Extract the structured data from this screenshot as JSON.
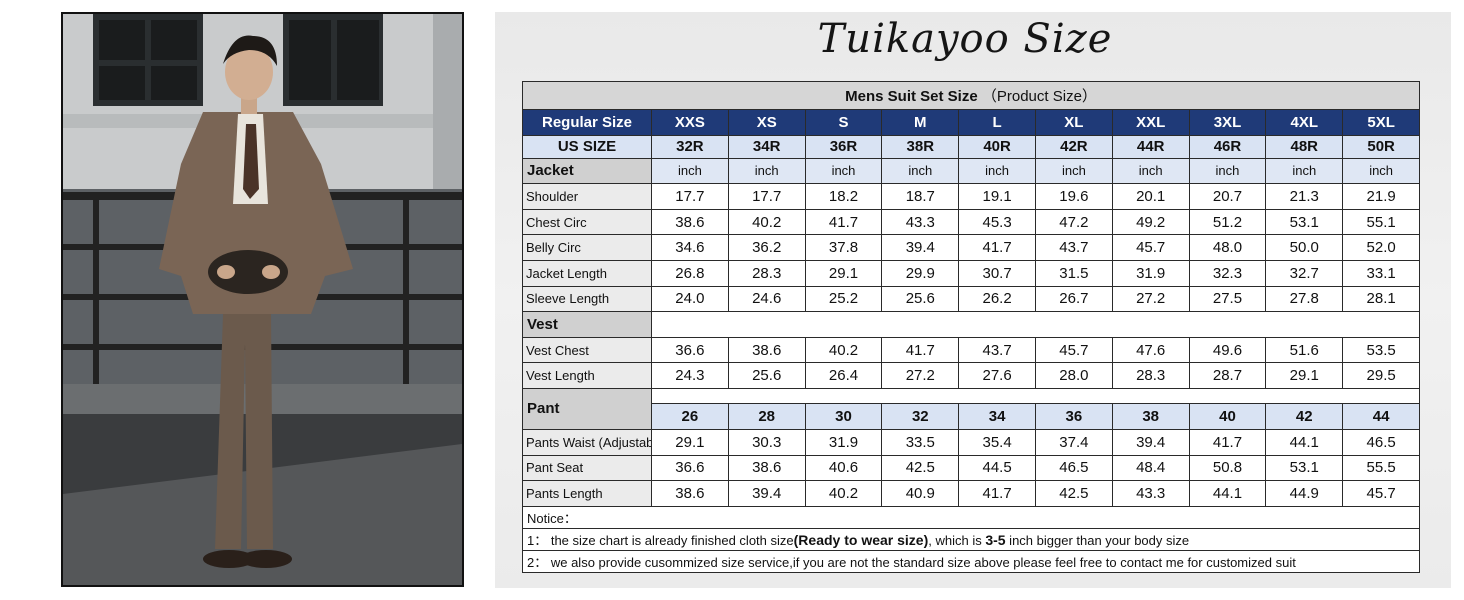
{
  "brand": "Tuikayoo Size",
  "table": {
    "title": "Mens Suit Set Size",
    "subtitle": "（Product Size）",
    "regular_label": "Regular Size",
    "sizes": [
      "XXS",
      "XS",
      "S",
      "M",
      "L",
      "XL",
      "XXL",
      "3XL",
      "4XL",
      "5XL"
    ],
    "us_label": "US SIZE",
    "us_sizes": [
      "32R",
      "34R",
      "36R",
      "38R",
      "40R",
      "42R",
      "44R",
      "46R",
      "48R",
      "50R"
    ],
    "unit": "inch",
    "jacket": {
      "label": "Jacket",
      "rows": [
        {
          "name": "Shoulder",
          "values": [
            "17.7",
            "17.7",
            "18.2",
            "18.7",
            "19.1",
            "19.6",
            "20.1",
            "20.7",
            "21.3",
            "21.9"
          ]
        },
        {
          "name": "Chest Circ",
          "values": [
            "38.6",
            "40.2",
            "41.7",
            "43.3",
            "45.3",
            "47.2",
            "49.2",
            "51.2",
            "53.1",
            "55.1"
          ]
        },
        {
          "name": "Belly Circ",
          "values": [
            "34.6",
            "36.2",
            "37.8",
            "39.4",
            "41.7",
            "43.7",
            "45.7",
            "48.0",
            "50.0",
            "52.0"
          ]
        },
        {
          "name": "Jacket Length",
          "values": [
            "26.8",
            "28.3",
            "29.1",
            "29.9",
            "30.7",
            "31.5",
            "31.9",
            "32.3",
            "32.7",
            "33.1"
          ]
        },
        {
          "name": "Sleeve Length",
          "values": [
            "24.0",
            "24.6",
            "25.2",
            "25.6",
            "26.2",
            "26.7",
            "27.2",
            "27.5",
            "27.8",
            "28.1"
          ]
        }
      ]
    },
    "vest": {
      "label": "Vest",
      "rows": [
        {
          "name": "Vest Chest",
          "values": [
            "36.6",
            "38.6",
            "40.2",
            "41.7",
            "43.7",
            "45.7",
            "47.6",
            "49.6",
            "51.6",
            "53.5"
          ]
        },
        {
          "name": "Vest Length",
          "values": [
            "24.3",
            "25.6",
            "26.4",
            "27.2",
            "27.6",
            "28.0",
            "28.3",
            "28.7",
            "29.1",
            "29.5"
          ]
        }
      ]
    },
    "pant": {
      "label": "Pant",
      "sizes": [
        "26",
        "28",
        "30",
        "32",
        "34",
        "36",
        "38",
        "40",
        "42",
        "44"
      ],
      "rows": [
        {
          "name": "Pants Waist (Adjustable)",
          "values": [
            "29.1",
            "30.3",
            "31.9",
            "33.5",
            "35.4",
            "37.4",
            "39.4",
            "41.7",
            "44.1",
            "46.5"
          ]
        },
        {
          "name": "Pant Seat",
          "values": [
            "36.6",
            "38.6",
            "40.6",
            "42.5",
            "44.5",
            "46.5",
            "48.4",
            "50.8",
            "53.1",
            "55.5"
          ]
        },
        {
          "name": "Pants Length",
          "values": [
            "38.6",
            "39.4",
            "40.2",
            "40.9",
            "41.7",
            "42.5",
            "43.3",
            "44.1",
            "44.9",
            "45.7"
          ]
        }
      ]
    },
    "notice": {
      "label": "Notice：",
      "line1_a": "1：  the size chart is already finished cloth size",
      "line1_b": "(Ready to wear size)",
      "line1_c": ", which is ",
      "line1_d": "3-5",
      "line1_e": " inch bigger than your body size",
      "line2": "2：  we also provide cusommized size service,if you are not the standard size above please feel free to contact me for customized suit"
    }
  }
}
